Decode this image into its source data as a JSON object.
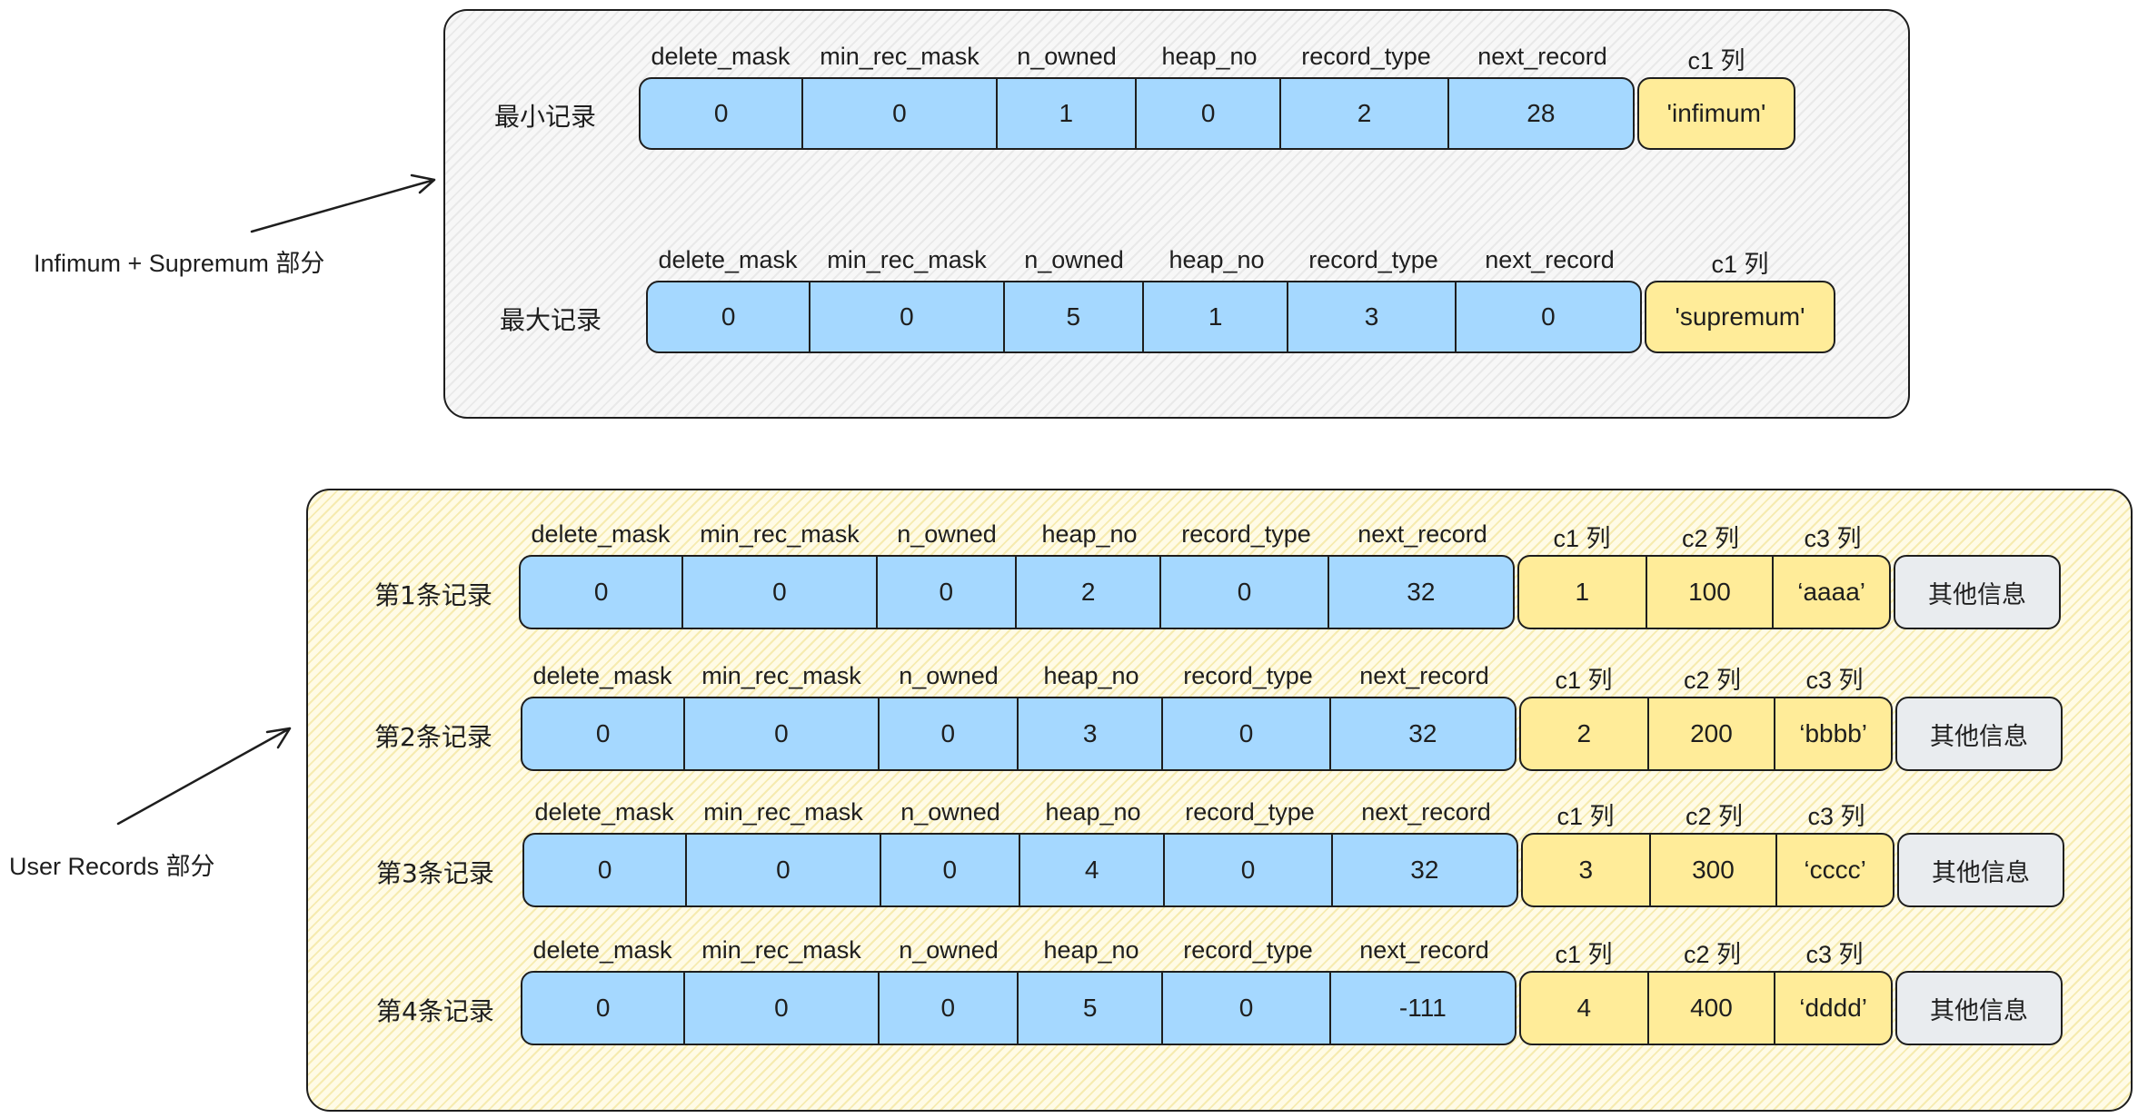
{
  "headers": {
    "system": [
      "delete_mask",
      "min_rec_mask",
      "n_owned",
      "heap_no",
      "record_type",
      "next_record"
    ],
    "c1": "c1 列",
    "c2": "c2 列",
    "c3": "c3 列"
  },
  "top_section": {
    "label": "Infimum + Supremum 部分",
    "records": [
      {
        "name": "最小记录",
        "values": [
          "0",
          "0",
          "1",
          "0",
          "2",
          "28"
        ],
        "user_cols": [
          "'infimum'"
        ]
      },
      {
        "name": "最大记录",
        "values": [
          "0",
          "0",
          "5",
          "1",
          "3",
          "0"
        ],
        "user_cols": [
          "'supremum'"
        ]
      }
    ]
  },
  "user_section": {
    "label": "User Records 部分",
    "other_info": "其他信息",
    "records": [
      {
        "name": "第1条记录",
        "values": [
          "0",
          "0",
          "0",
          "2",
          "0",
          "32"
        ],
        "user_cols": [
          "1",
          "100",
          "‘aaaa’"
        ]
      },
      {
        "name": "第2条记录",
        "values": [
          "0",
          "0",
          "0",
          "3",
          "0",
          "32"
        ],
        "user_cols": [
          "2",
          "200",
          "‘bbbb’"
        ]
      },
      {
        "name": "第3条记录",
        "values": [
          "0",
          "0",
          "0",
          "4",
          "0",
          "32"
        ],
        "user_cols": [
          "3",
          "300",
          "‘cccc’"
        ]
      },
      {
        "name": "第4条记录",
        "values": [
          "0",
          "0",
          "0",
          "5",
          "0",
          "-111"
        ],
        "user_cols": [
          "4",
          "400",
          "‘dddd’"
        ]
      }
    ]
  },
  "colors": {
    "system_fields": "#a5d8ff",
    "user_fields": "#ffec99",
    "other_info": "#e9ecef",
    "user_section_bg": "#fffbe6",
    "top_section_bg": "#f7f7f7"
  }
}
